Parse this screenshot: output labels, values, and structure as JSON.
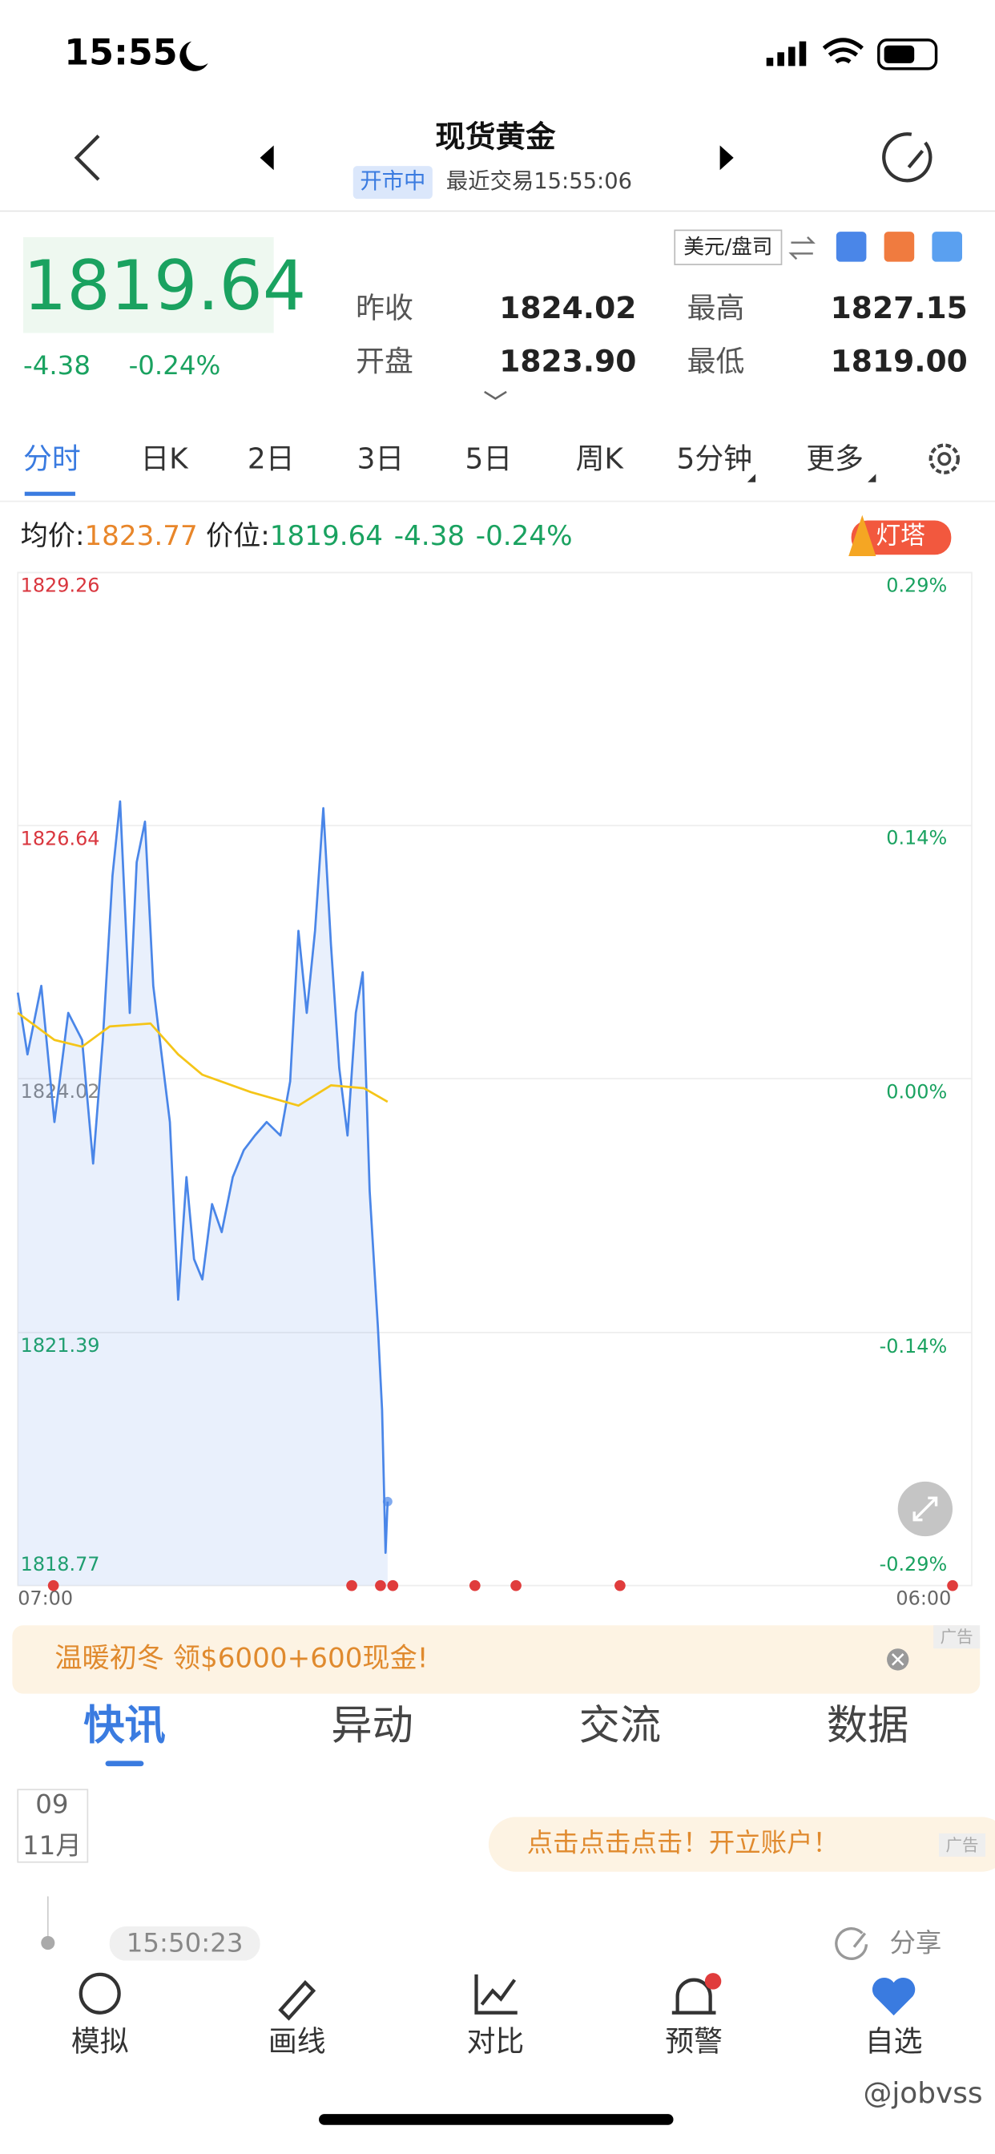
{
  "status_bar": {
    "time": "15:55"
  },
  "header": {
    "title": "现货黄金",
    "status": "开市中",
    "last_trade": "最近交易15:55:06"
  },
  "quote": {
    "price": "1819.64",
    "change": "-4.38",
    "change_pct": "-0.24%",
    "unit": "美元/盘司",
    "stats": [
      {
        "label": "昨收",
        "value": "1824.02"
      },
      {
        "label": "最高",
        "value": "1827.15"
      },
      {
        "label": "开盘",
        "value": "1823.90"
      },
      {
        "label": "最低",
        "value": "1819.00"
      }
    ]
  },
  "tabs": [
    "分时",
    "日K",
    "2日",
    "3日",
    "5日",
    "周K",
    "5分钟",
    "更多"
  ],
  "info": {
    "avg_label": "均价:",
    "avg": "1823.77",
    "price_label": "价位:",
    "price": "1819.64",
    "change": "-4.38",
    "change_pct": "-0.24%",
    "badge": "灯塔"
  },
  "chart_data": {
    "type": "line",
    "xlim": [
      0,
      1380
    ],
    "xticks": [
      {
        "value": 0,
        "label": "07:00"
      },
      {
        "value": 1380,
        "label": "06:00"
      }
    ],
    "ylim": [
      1818.77,
      1829.26
    ],
    "yticks": [
      1829.26,
      1826.64,
      1824.02,
      1821.39,
      1818.77
    ],
    "y2lim": [
      -0.287,
      0.287
    ],
    "y2ticks": [
      {
        "value": 0.287,
        "label": "0.29%"
      },
      {
        "value": 0.144,
        "label": "0.14%"
      },
      {
        "value": 0,
        "label": "0.00%"
      },
      {
        "value": -0.144,
        "label": "-0.14%"
      },
      {
        "value": -0.287,
        "label": "-0.29%"
      }
    ],
    "grid": true,
    "series": [
      {
        "color": "#4a86e8",
        "fill": true,
        "x": [
          0,
          14,
          34,
          53,
          73,
          93,
          109,
          123,
          137,
          148,
          162,
          172,
          184,
          196,
          208,
          220,
          232,
          244,
          255,
          267,
          281,
          295,
          311,
          327,
          343,
          360,
          380,
          394,
          406,
          418,
          430,
          442,
          453,
          465,
          477,
          489,
          499,
          509,
          521,
          527,
          532,
          535
        ],
        "values": [
          1824.91,
          1824.27,
          1824.98,
          1823.57,
          1824.7,
          1824.42,
          1823.14,
          1824.42,
          1826.12,
          1826.89,
          1824.7,
          1826.26,
          1826.68,
          1824.98,
          1824.27,
          1823.57,
          1821.73,
          1823.0,
          1822.15,
          1821.94,
          1822.72,
          1822.43,
          1823.0,
          1823.28,
          1823.43,
          1823.57,
          1823.43,
          1823.99,
          1825.55,
          1824.7,
          1825.55,
          1826.82,
          1825.41,
          1824.13,
          1823.43,
          1824.7,
          1825.12,
          1822.86,
          1821.44,
          1820.59,
          1819.11,
          1819.64
        ]
      },
      {
        "color": "#f5c518",
        "x": [
          0,
          53,
          93,
          133,
          192,
          232,
          267,
          337,
          406,
          453,
          501,
          535
        ],
        "values": [
          1824.7,
          1824.42,
          1824.35,
          1824.56,
          1824.59,
          1824.27,
          1824.06,
          1823.88,
          1823.74,
          1823.95,
          1823.92,
          1823.78
        ]
      }
    ]
  },
  "ad": {
    "text": "温暖初冬 领$6000+600现金!",
    "tag": "广告"
  },
  "news_tabs": [
    "快讯",
    "异动",
    "交流",
    "数据"
  ],
  "feed": {
    "day": "09",
    "month": "11月",
    "ad": "点击点击点击！开立账户！",
    "ad_tag": "广告",
    "time": "15:50:23",
    "share": "分享"
  },
  "nav": [
    "模拟",
    "画线",
    "对比",
    "预警",
    "自选"
  ],
  "watermark": "@jobvss"
}
